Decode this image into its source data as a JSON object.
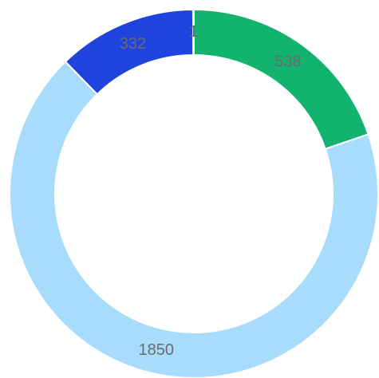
{
  "chart_data": {
    "type": "doughnut",
    "values": [
      538,
      1850,
      332,
      1,
      1
    ],
    "colors": [
      "#12b36f",
      "#a8dcfc",
      "#1f44dd",
      "#333333",
      "#c8c8c8"
    ]
  }
}
